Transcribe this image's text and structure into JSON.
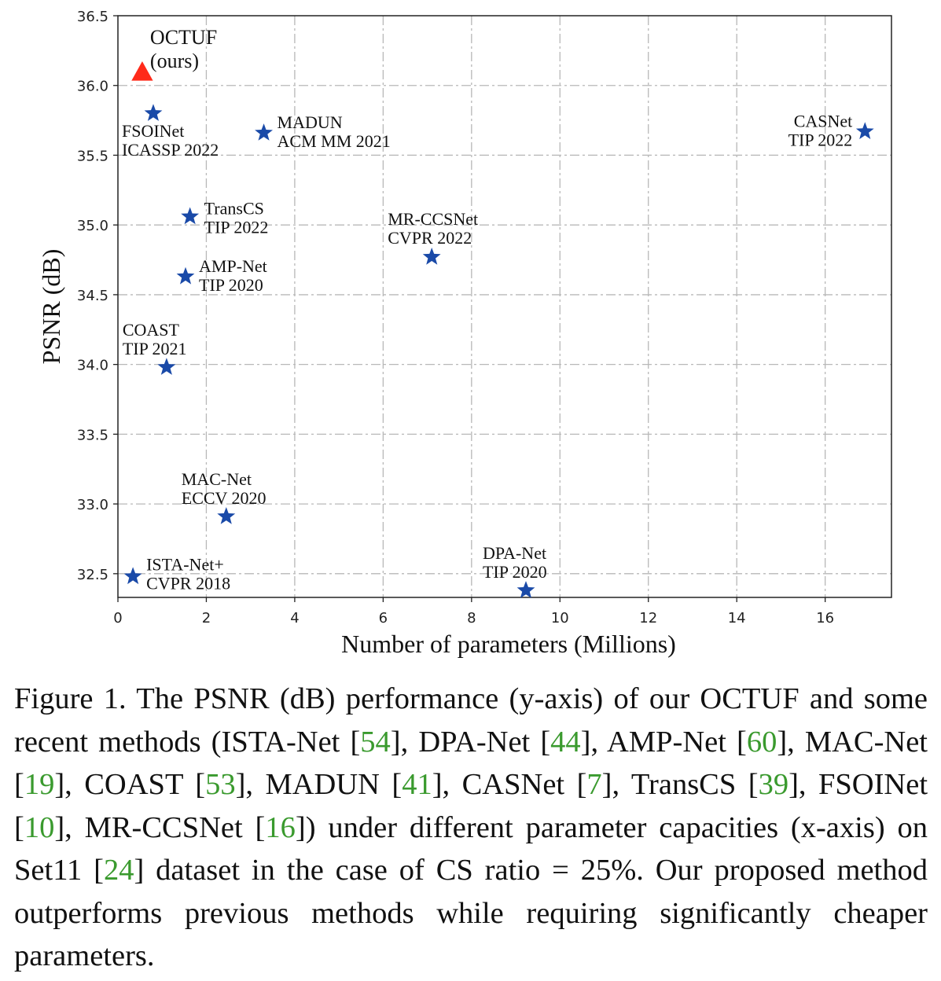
{
  "chart_data": {
    "type": "scatter",
    "xlabel": "Number of parameters (Millions)",
    "ylabel": "PSNR (dB)",
    "xlim": [
      0,
      17.5
    ],
    "ylim": [
      32.33,
      36.5
    ],
    "xticks": [
      "0",
      "2",
      "4",
      "6",
      "8",
      "10",
      "12",
      "14",
      "16"
    ],
    "yticks": [
      "32.5",
      "33.0",
      "33.5",
      "34.0",
      "34.5",
      "35.0",
      "35.5",
      "36.0",
      "36.5"
    ],
    "grid": true,
    "colors": {
      "ours": "#ff2a1a",
      "others": "#1a4aa8"
    },
    "points": [
      {
        "method": "OCTUF",
        "venue": "(ours)",
        "x": 0.55,
        "y": 36.1,
        "marker": "triangle"
      },
      {
        "method": "FSOINet",
        "venue": "ICASSP 2022",
        "x": 0.8,
        "y": 35.8,
        "marker": "star"
      },
      {
        "method": "MADUN",
        "venue": "ACM MM 2021",
        "x": 3.3,
        "y": 35.66,
        "marker": "star"
      },
      {
        "method": "CASNet",
        "venue": "TIP 2022",
        "x": 16.9,
        "y": 35.67,
        "marker": "star"
      },
      {
        "method": "TransCS",
        "venue": "TIP 2022",
        "x": 1.63,
        "y": 35.06,
        "marker": "star"
      },
      {
        "method": "MR-CCSNet",
        "venue": "CVPR 2022",
        "x": 7.1,
        "y": 34.77,
        "marker": "star"
      },
      {
        "method": "AMP-Net",
        "venue": "TIP 2020",
        "x": 1.53,
        "y": 34.63,
        "marker": "star"
      },
      {
        "method": "COAST",
        "venue": "TIP 2021",
        "x": 1.1,
        "y": 33.98,
        "marker": "star"
      },
      {
        "method": "MAC-Net",
        "venue": "ECCV 2020",
        "x": 2.45,
        "y": 32.91,
        "marker": "star"
      },
      {
        "method": "ISTA-Net+",
        "venue": "CVPR 2018",
        "x": 0.34,
        "y": 32.48,
        "marker": "star"
      },
      {
        "method": "DPA-Net",
        "venue": "TIP 2020",
        "x": 9.23,
        "y": 32.38,
        "marker": "star"
      }
    ]
  },
  "caption": {
    "segments": [
      "Figure 1.  The PSNR (dB) performance (y-axis) of our OCTUF and some recent methods (ISTA-Net [",
      {
        "ref": "54"
      },
      "], DPA-Net [",
      {
        "ref": "44"
      },
      "], AMP-Net [",
      {
        "ref": "60"
      },
      "], MAC-Net [",
      {
        "ref": "19"
      },
      "], COAST [",
      {
        "ref": "53"
      },
      "], MADUN [",
      {
        "ref": "41"
      },
      "], CASNet [",
      {
        "ref": "7"
      },
      "], TransCS [",
      {
        "ref": "39"
      },
      "], FSOINet [",
      {
        "ref": "10"
      },
      "], MR-CCSNet [",
      {
        "ref": "16"
      },
      "]) under different parameter capacities (x-axis) on Set11 [",
      {
        "ref": "24"
      },
      "] dataset in the case of CS ratio = 25%. Our proposed method outperforms previous methods while requiring significantly cheaper parameters."
    ]
  }
}
